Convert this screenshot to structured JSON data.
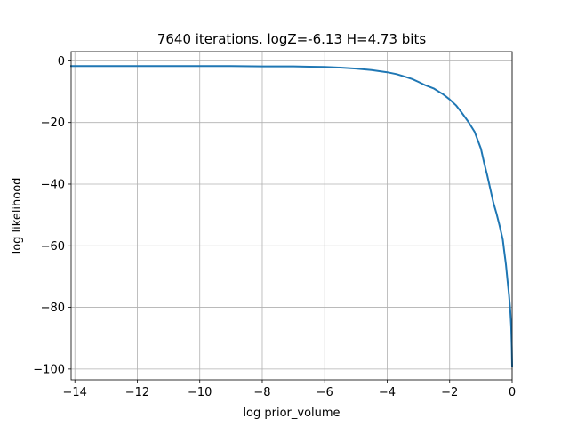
{
  "chart_data": {
    "type": "line",
    "title": "7640 iterations. logZ=-6.13 H=4.73 bits",
    "xlabel": "log prior_volume",
    "ylabel": "log likelihood",
    "xlim": [
      -14.12,
      0.0
    ],
    "ylim": [
      -103.5,
      3.0
    ],
    "xticks": [
      -14,
      -12,
      -10,
      -8,
      -6,
      -4,
      -2,
      0
    ],
    "xtick_labels": [
      "−14",
      "−12",
      "−10",
      "−8",
      "−6",
      "−4",
      "−2",
      "0"
    ],
    "yticks": [
      0,
      -20,
      -40,
      -60,
      -80,
      -100
    ],
    "ytick_labels": [
      "0",
      "−20",
      "−40",
      "−60",
      "−80",
      "−100"
    ],
    "grid": true,
    "series": [
      {
        "color": "#1f77b4",
        "x": [
          -14.12,
          -13.0,
          -12.0,
          -11.0,
          -10.0,
          -9.0,
          -8.0,
          -7.0,
          -6.5,
          -6.0,
          -5.5,
          -5.0,
          -4.5,
          -4.0,
          -3.7,
          -3.5,
          -3.2,
          -3.0,
          -2.8,
          -2.5,
          -2.2,
          -2.0,
          -1.8,
          -1.6,
          -1.4,
          -1.2,
          -1.0,
          -0.9,
          -0.8,
          -0.7,
          -0.6,
          -0.5,
          -0.4,
          -0.3,
          -0.25,
          -0.2,
          -0.15,
          -0.1,
          -0.06,
          -0.03,
          -0.01,
          0.0
        ],
        "y": [
          -1.7,
          -1.7,
          -1.7,
          -1.7,
          -1.7,
          -1.7,
          -1.8,
          -1.8,
          -1.9,
          -2.0,
          -2.2,
          -2.5,
          -3.0,
          -3.7,
          -4.3,
          -4.9,
          -5.9,
          -6.8,
          -7.8,
          -9.0,
          -10.9,
          -12.5,
          -14.4,
          -17.0,
          -19.8,
          -23.0,
          -28.5,
          -33.0,
          -37.0,
          -41.5,
          -46.0,
          -49.5,
          -53.5,
          -58.0,
          -62.0,
          -66.0,
          -71.0,
          -76.0,
          -81.0,
          -86.0,
          -93.0,
          -99.0
        ]
      }
    ]
  }
}
